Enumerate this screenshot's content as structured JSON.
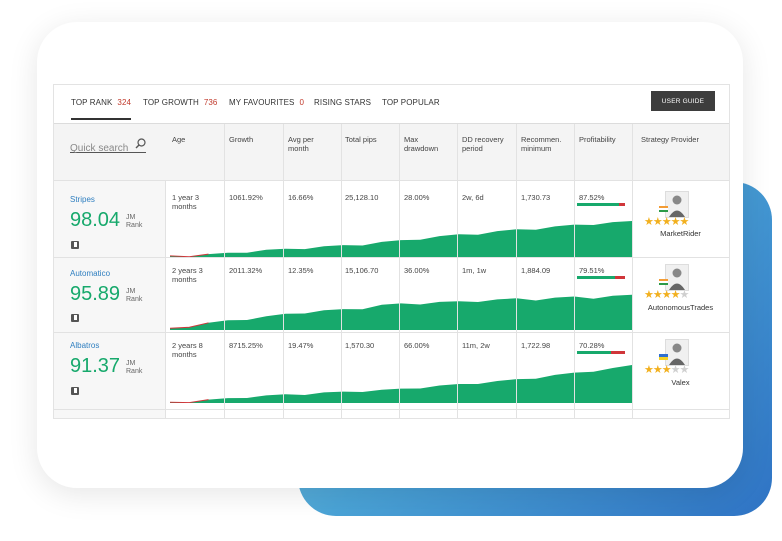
{
  "tabs": [
    {
      "label": "TOP RANK",
      "count": "324",
      "active": true
    },
    {
      "label": "TOP GROWTH",
      "count": "736",
      "active": false
    },
    {
      "label": "MY FAVOURITES",
      "count": "0",
      "active": false
    },
    {
      "label": "RISING STARS",
      "count": "",
      "active": false
    },
    {
      "label": "TOP POPULAR",
      "count": "",
      "active": false
    }
  ],
  "user_guide_label": "USER GUIDE",
  "search": {
    "placeholder": "Quick search"
  },
  "columns": {
    "age": "Age",
    "growth": "Growth",
    "avg": "Avg per month",
    "pips": "Total pips",
    "dd": "Max drawdown",
    "ddrec": "DD recovery period",
    "recmin": "Recommen. minimum",
    "profit": "Profitability",
    "provider": "Strategy Provider"
  },
  "rank_label": "JM Rank",
  "strategies": [
    {
      "name": "Stripes",
      "rank": "98.04",
      "age": "1 year 3 months",
      "growth": "1061.92%",
      "avg": "16.66%",
      "pips": "25,128.10",
      "dd": "28.00%",
      "ddrec": "2w, 6d",
      "recmin": "1,730.73",
      "profit": "87.52%",
      "profit_value": 87.52,
      "provider": "MarketRider",
      "stars": 5,
      "flag": "IN",
      "equity": [
        0.03,
        0.05,
        0.08,
        0.12,
        0.16,
        0.2,
        0.23,
        0.26,
        0.3,
        0.33,
        0.36,
        0.42,
        0.47,
        0.52,
        0.58,
        0.63,
        0.66,
        0.72,
        0.77,
        0.8,
        0.85,
        0.9,
        0.93,
        0.97,
        1.0
      ]
    },
    {
      "name": "Automatico",
      "rank": "95.89",
      "age": "2 years 3 months",
      "growth": "2011.32%",
      "avg": "12.35%",
      "pips": "15,106.70",
      "dd": "36.00%",
      "ddrec": "1m, 1w",
      "recmin": "1,884.09",
      "profit": "79.51%",
      "profit_value": 79.51,
      "provider": "AutonomousTrades",
      "stars": 4,
      "flag": "IN",
      "equity": [
        0.05,
        0.12,
        0.2,
        0.27,
        0.32,
        0.38,
        0.45,
        0.5,
        0.55,
        0.58,
        0.62,
        0.7,
        0.74,
        0.75,
        0.78,
        0.8,
        0.82,
        0.85,
        0.88,
        0.86,
        0.9,
        0.93,
        0.91,
        0.95,
        0.98
      ]
    },
    {
      "name": "Albatros",
      "rank": "91.37",
      "age": "2 years 8 months",
      "growth": "8715.25%",
      "avg": "19.47%",
      "pips": "1,570.30",
      "dd": "66.00%",
      "ddrec": "11m, 2w",
      "recmin": "1,722.98",
      "profit": "70.28%",
      "profit_value": 70.28,
      "provider": "Valex",
      "stars": 3,
      "flag": "UA",
      "equity": [
        0.02,
        0.05,
        0.09,
        0.13,
        0.17,
        0.2,
        0.23,
        0.25,
        0.28,
        0.3,
        0.33,
        0.35,
        0.38,
        0.42,
        0.46,
        0.5,
        0.54,
        0.58,
        0.63,
        0.68,
        0.74,
        0.8,
        0.86,
        0.92,
        1.0
      ]
    }
  ],
  "colors": {
    "accent": "#17a96c",
    "danger": "#d0363a",
    "link": "#2f7fc0"
  }
}
